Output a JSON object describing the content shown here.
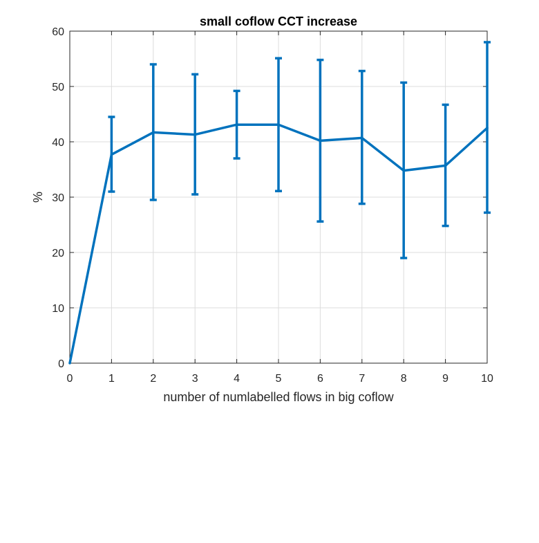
{
  "chart_data": {
    "type": "line",
    "title": "small coflow CCT increase",
    "xlabel": "number of numlabelled flows in big coflow",
    "ylabel": "%",
    "xlim": [
      0,
      10
    ],
    "ylim": [
      0,
      60
    ],
    "xticks": [
      0,
      1,
      2,
      3,
      4,
      5,
      6,
      7,
      8,
      9,
      10
    ],
    "yticks": [
      0,
      10,
      20,
      30,
      40,
      50,
      60
    ],
    "grid": true,
    "legend": "none",
    "color": "#0072BD",
    "series": [
      {
        "x": [
          0,
          1,
          2,
          3,
          4,
          5,
          6,
          7,
          8,
          9,
          10
        ],
        "y": [
          0,
          37.7,
          41.7,
          41.3,
          43.1,
          43.1,
          40.2,
          40.7,
          34.8,
          35.7,
          42.5
        ],
        "err_low": [
          null,
          31.0,
          29.5,
          30.5,
          37.0,
          31.1,
          25.6,
          28.8,
          19.0,
          24.8,
          27.2
        ],
        "err_high": [
          null,
          44.5,
          54.0,
          52.2,
          49.2,
          55.1,
          54.8,
          52.8,
          50.7,
          46.7,
          58.0
        ]
      }
    ]
  }
}
